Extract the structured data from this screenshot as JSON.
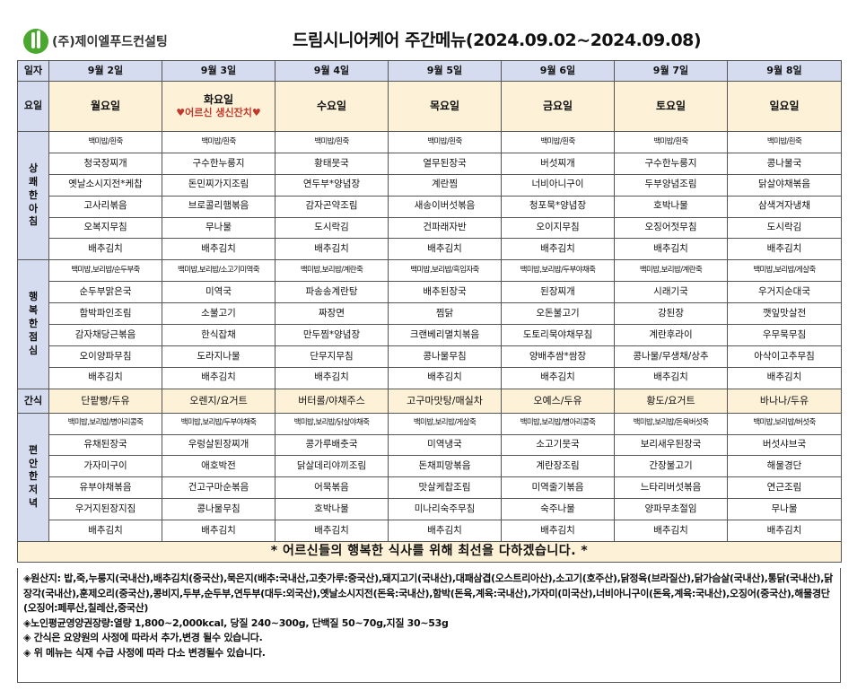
{
  "header": {
    "company": "(주)제이엘푸드컨설팅",
    "title": "드림시니어케어 주간메뉴(2024.09.02~2024.09.08)"
  },
  "labels": {
    "date": "일자",
    "dow": "요일",
    "breakfast": "상\n쾌\n한\n아\n침",
    "lunch": "행\n복\n한\n점\n심",
    "snack": "간식",
    "dinner": "편\n안\n한\n저\n녁"
  },
  "dates": [
    "9월 2일",
    "9월 3일",
    "9월 4일",
    "9월 5일",
    "9월 6일",
    "9월 7일",
    "9월 8일"
  ],
  "days": [
    "월요일",
    "화요일",
    "수요일",
    "목요일",
    "금요일",
    "토요일",
    "일요일"
  ],
  "special_note": "♥어르신 생신잔치♥",
  "breakfast": [
    [
      "백미밥/흰죽",
      "백미밥/흰죽",
      "백미밥/흰죽",
      "백미밥/흰죽",
      "백미밥/흰죽",
      "백미밥/흰죽",
      "백미밥/흰죽"
    ],
    [
      "청국장찌개",
      "구수한누룽지",
      "황태뭇국",
      "열무된장국",
      "버섯찌개",
      "구수한누룽지",
      "콩나물국"
    ],
    [
      "옛날소시지전*케찹",
      "돈민찌가지조림",
      "연두부*양념장",
      "계란찜",
      "너비아니구이",
      "두부양념조림",
      "닭살야채볶음"
    ],
    [
      "고사리볶음",
      "브로콜리햄볶음",
      "감자곤약조림",
      "새송이버섯볶음",
      "청포묵*양념장",
      "호박나물",
      "삼색겨자냉채"
    ],
    [
      "오복지무침",
      "무나물",
      "도시락김",
      "건파래자반",
      "오이지무침",
      "오징어젓무침",
      "도시락김"
    ],
    [
      "배추김치",
      "배추김치",
      "배추김치",
      "배추김치",
      "배추김치",
      "배추김치",
      "배추김치"
    ]
  ],
  "lunch": [
    [
      "백미밥,보리밥/순두부죽",
      "백미밥,보리밥/소고기미역죽",
      "백미밥,보리밥/계란죽",
      "백미밥,보리밥/흑임자죽",
      "백미밥,보리밥/두부야채죽",
      "백미밥,보리밥/계란죽",
      "백미밥,보리밥/게살죽"
    ],
    [
      "순두부맑은국",
      "미역국",
      "파송송계란탕",
      "배추된장국",
      "된장찌개",
      "시래기국",
      "우거지순대국"
    ],
    [
      "함박파인조림",
      "소불고기",
      "짜장면",
      "찜닭",
      "오돈불고기",
      "강된장",
      "깻잎맛살전"
    ],
    [
      "감자채당근볶음",
      "한식잡채",
      "만두찜*양념장",
      "크랜베리멸치볶음",
      "도토리묵야채무침",
      "계란후라이",
      "우무묵무침"
    ],
    [
      "오이양파무침",
      "도라지나물",
      "단무지무침",
      "콩나물무침",
      "양배추쌈*쌈장",
      "콩나물/무생채/상추",
      "아삭이고추무침"
    ],
    [
      "배추김치",
      "배추김치",
      "배추김치",
      "배추김치",
      "배추김치",
      "배추김치",
      "배추김치"
    ]
  ],
  "snack": [
    "단팥빵/두유",
    "오렌지/요거트",
    "버터롤/야채주스",
    "고구마맛탕/매실차",
    "오예스/두유",
    "황도/요거트",
    "바나나/두유"
  ],
  "dinner": [
    [
      "백미밥,보리밥/병아리콩죽",
      "백미밥,보리밥/두부야채죽",
      "백미밥,보리밥/닭살야채죽",
      "백미밥,보리밥/게살죽",
      "백미밥,보리밥/병아리콩죽",
      "백미밥,보리밥/돈육버섯죽",
      "백미밥,보리밥/버섯죽"
    ],
    [
      "유채된장국",
      "우렁살된장찌개",
      "콩가루배춧국",
      "미역냉국",
      "소고기뭇국",
      "보리새우된장국",
      "버섯샤브국"
    ],
    [
      "가자미구이",
      "애호박전",
      "닭살데리야끼조림",
      "돈채피망볶음",
      "계란장조림",
      "간장불고기",
      "해물경단"
    ],
    [
      "유부야채볶음",
      "건고구마순볶음",
      "어묵볶음",
      "맛살케찹조림",
      "미역줄기볶음",
      "느타리버섯볶음",
      "연근조림"
    ],
    [
      "우거지된장지짐",
      "콩나물무침",
      "호박나물",
      "미나리숙주무침",
      "숙주나물",
      "양파무초절임",
      "무나물"
    ],
    [
      "배추김치",
      "배추김치",
      "배추김치",
      "배추김치",
      "배추김치",
      "배추김치",
      "배추김치"
    ]
  ],
  "slogan": "* 어르신들의 행복한 식사를 위해 최선을 다하겠습니다. *",
  "footer": {
    "origin": "◈원산지: 밥,죽,누룽지(국내산),배추김치(중국산),묵은지(배추:국내산,고춧가루:중국산),돼지고기(국내산),대패삼겹(오스트리아산),소고기(호주산),닭정육(브라질산),닭가슴살(국내산),통닭(국내산),닭장각(국내산),훈제오리(중국산),콩비지,두부,순두부,연두부(대두:외국산),옛날소시지전(돈육:국내산),함박(돈육,계육:국내산),가자미(미국산),너비아니구이(돈육,계육:국내산),오징어(중국산),해물경단(오징어:페루산,칠레산,중국산)",
    "nutrition": "◈노인평균영양권장량:열량 1,800~2,000kcal, 당질 240~300g, 단백질 50~70g,지질 30~53g",
    "snack_note": "◈ 간식은 요양원의 사정에 따라서 추가,변경 될수 있습니다.",
    "menu_note": "◈ 위 메뉴는 식재 수급 사정에 따라 다소 변경될수 있습니다."
  }
}
